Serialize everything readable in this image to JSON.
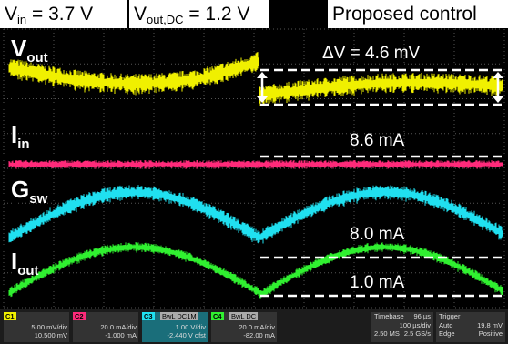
{
  "header": {
    "vin": {
      "main": "V",
      "sub": "in",
      "rest": " = 3.7 V"
    },
    "vout_dc": {
      "main": "V",
      "sub": "out,DC",
      "rest": " = 1.2 V"
    },
    "mode": "Proposed control"
  },
  "labels": [
    {
      "main": "V",
      "sub": "out"
    },
    {
      "main": "I",
      "sub": "in"
    },
    {
      "main": "G",
      "sub": "sw"
    },
    {
      "main": "I",
      "sub": "out"
    }
  ],
  "annotations": [
    "ΔV = 4.6 mV",
    "8.6 mA",
    "8.0 mA",
    "1.0 mA"
  ],
  "channels": [
    {
      "id": "C1",
      "scale": "5.00 mV/div",
      "offset": "10.500 mV"
    },
    {
      "id": "C2",
      "scale": "20.0 mA/div",
      "offset": "-1.000 mA"
    },
    {
      "id": "C3",
      "coupling": "BwL DC1M",
      "scale": "1.00 V/div",
      "offset": "-2.440 V ofst"
    },
    {
      "id": "C4",
      "coupling": "BwL DC",
      "scale": "20.0 mA/div",
      "offset": "-82.00 mA"
    }
  ],
  "timebase": {
    "label": "Timebase",
    "delay": "96 µs",
    "scale": "100 µs/div",
    "samples": "2.50 MS",
    "rate": "2.5 GS/s"
  },
  "trigger": {
    "label": "Trigger",
    "mode": "Auto",
    "type": "Edge",
    "level": "19.8 mV",
    "slope": "Positive"
  }
}
